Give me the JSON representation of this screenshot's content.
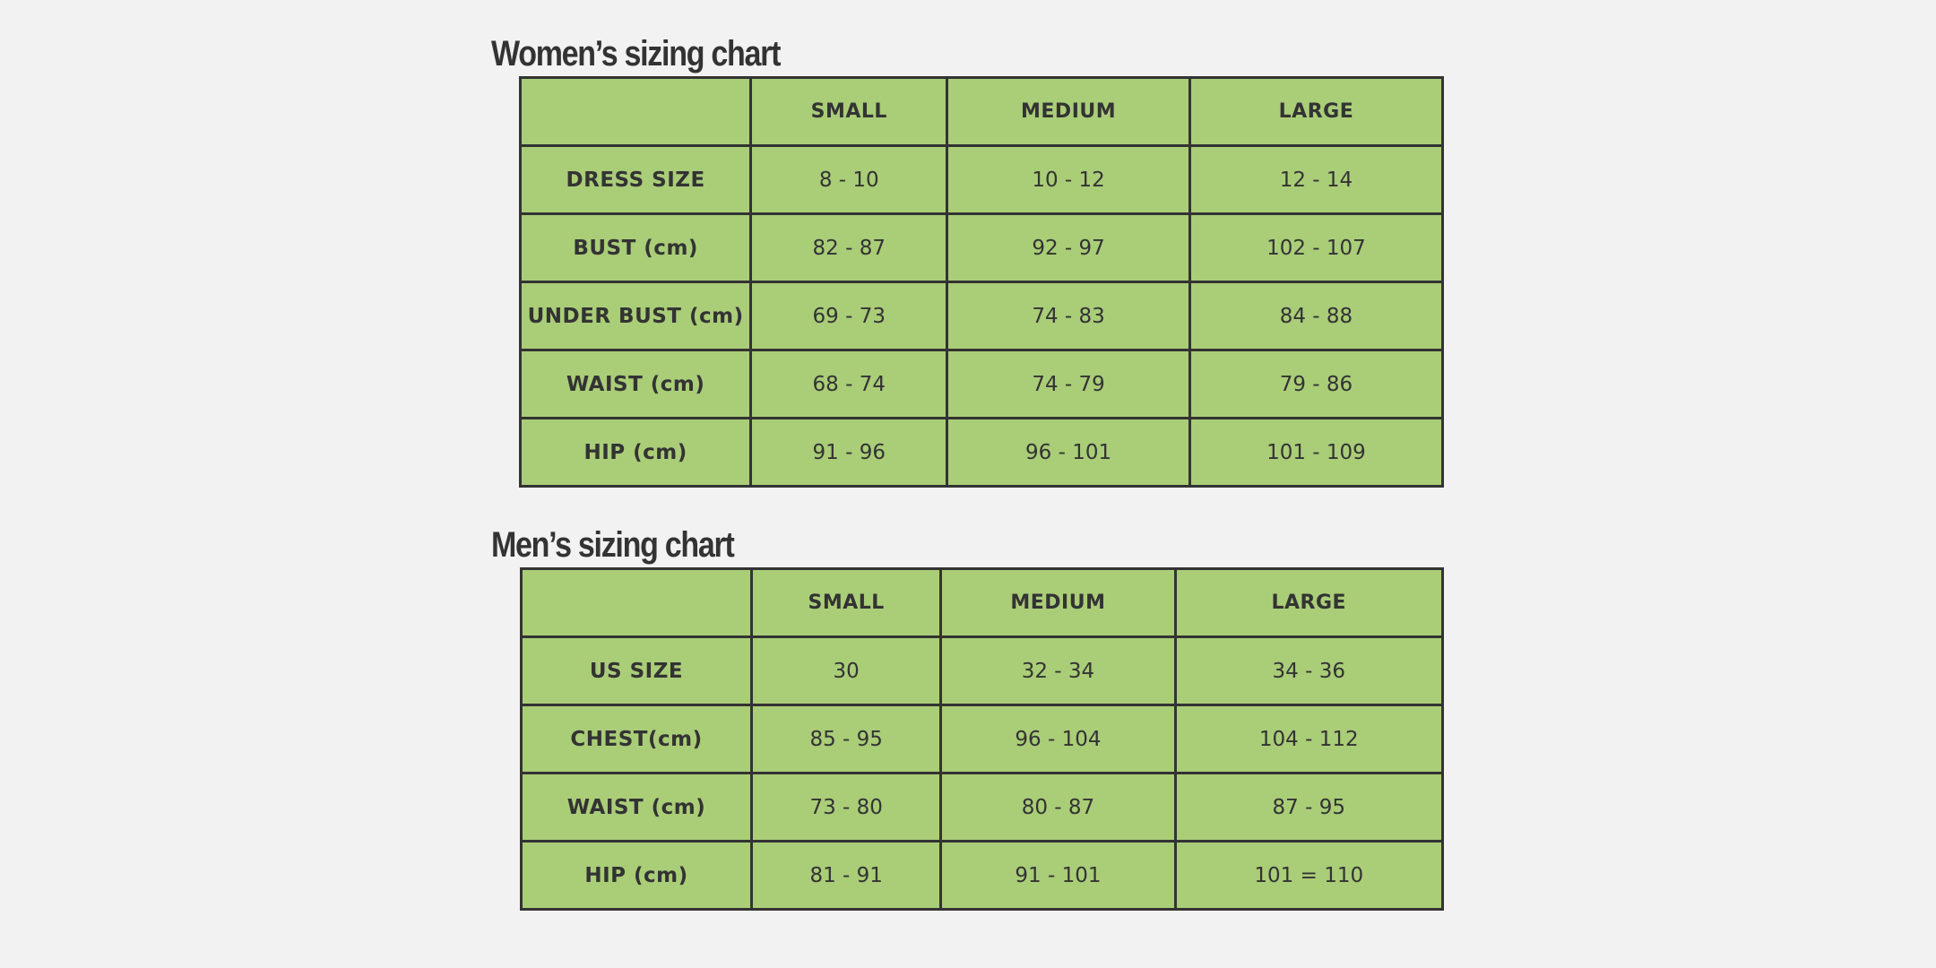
{
  "women": {
    "title": "Women’s sizing chart",
    "header": [
      "SMALL",
      "MEDIUM",
      "LARGE"
    ],
    "rows": [
      [
        "DRESS SIZE",
        "8 - 10",
        "10 - 12",
        "12 - 14"
      ],
      [
        "BUST (cm)",
        "82 - 87",
        "92 - 97",
        "102 - 107"
      ],
      [
        "UNDER BUST (cm)",
        "69 - 73",
        "74 - 83",
        "84 - 88"
      ],
      [
        "WAIST (cm)",
        "68 - 74",
        "74 - 79",
        "79 - 86"
      ],
      [
        "HIP (cm)",
        "91 - 96",
        "96 - 101",
        "101 - 109"
      ]
    ]
  },
  "men": {
    "title": "Men’s sizing chart",
    "header": [
      "SMALL",
      "MEDIUM",
      "LARGE"
    ],
    "rows": [
      [
        "US SIZE",
        "30",
        "32 - 34",
        "34 - 36"
      ],
      [
        "CHEST(cm)",
        "85 - 95",
        "96 - 104",
        "104 - 112"
      ],
      [
        "WAIST (cm)",
        "73 - 80",
        "80 - 87",
        "87 - 95"
      ],
      [
        "HIP (cm)",
        "81 - 91",
        "91 - 101",
        "101 = 110"
      ]
    ]
  }
}
